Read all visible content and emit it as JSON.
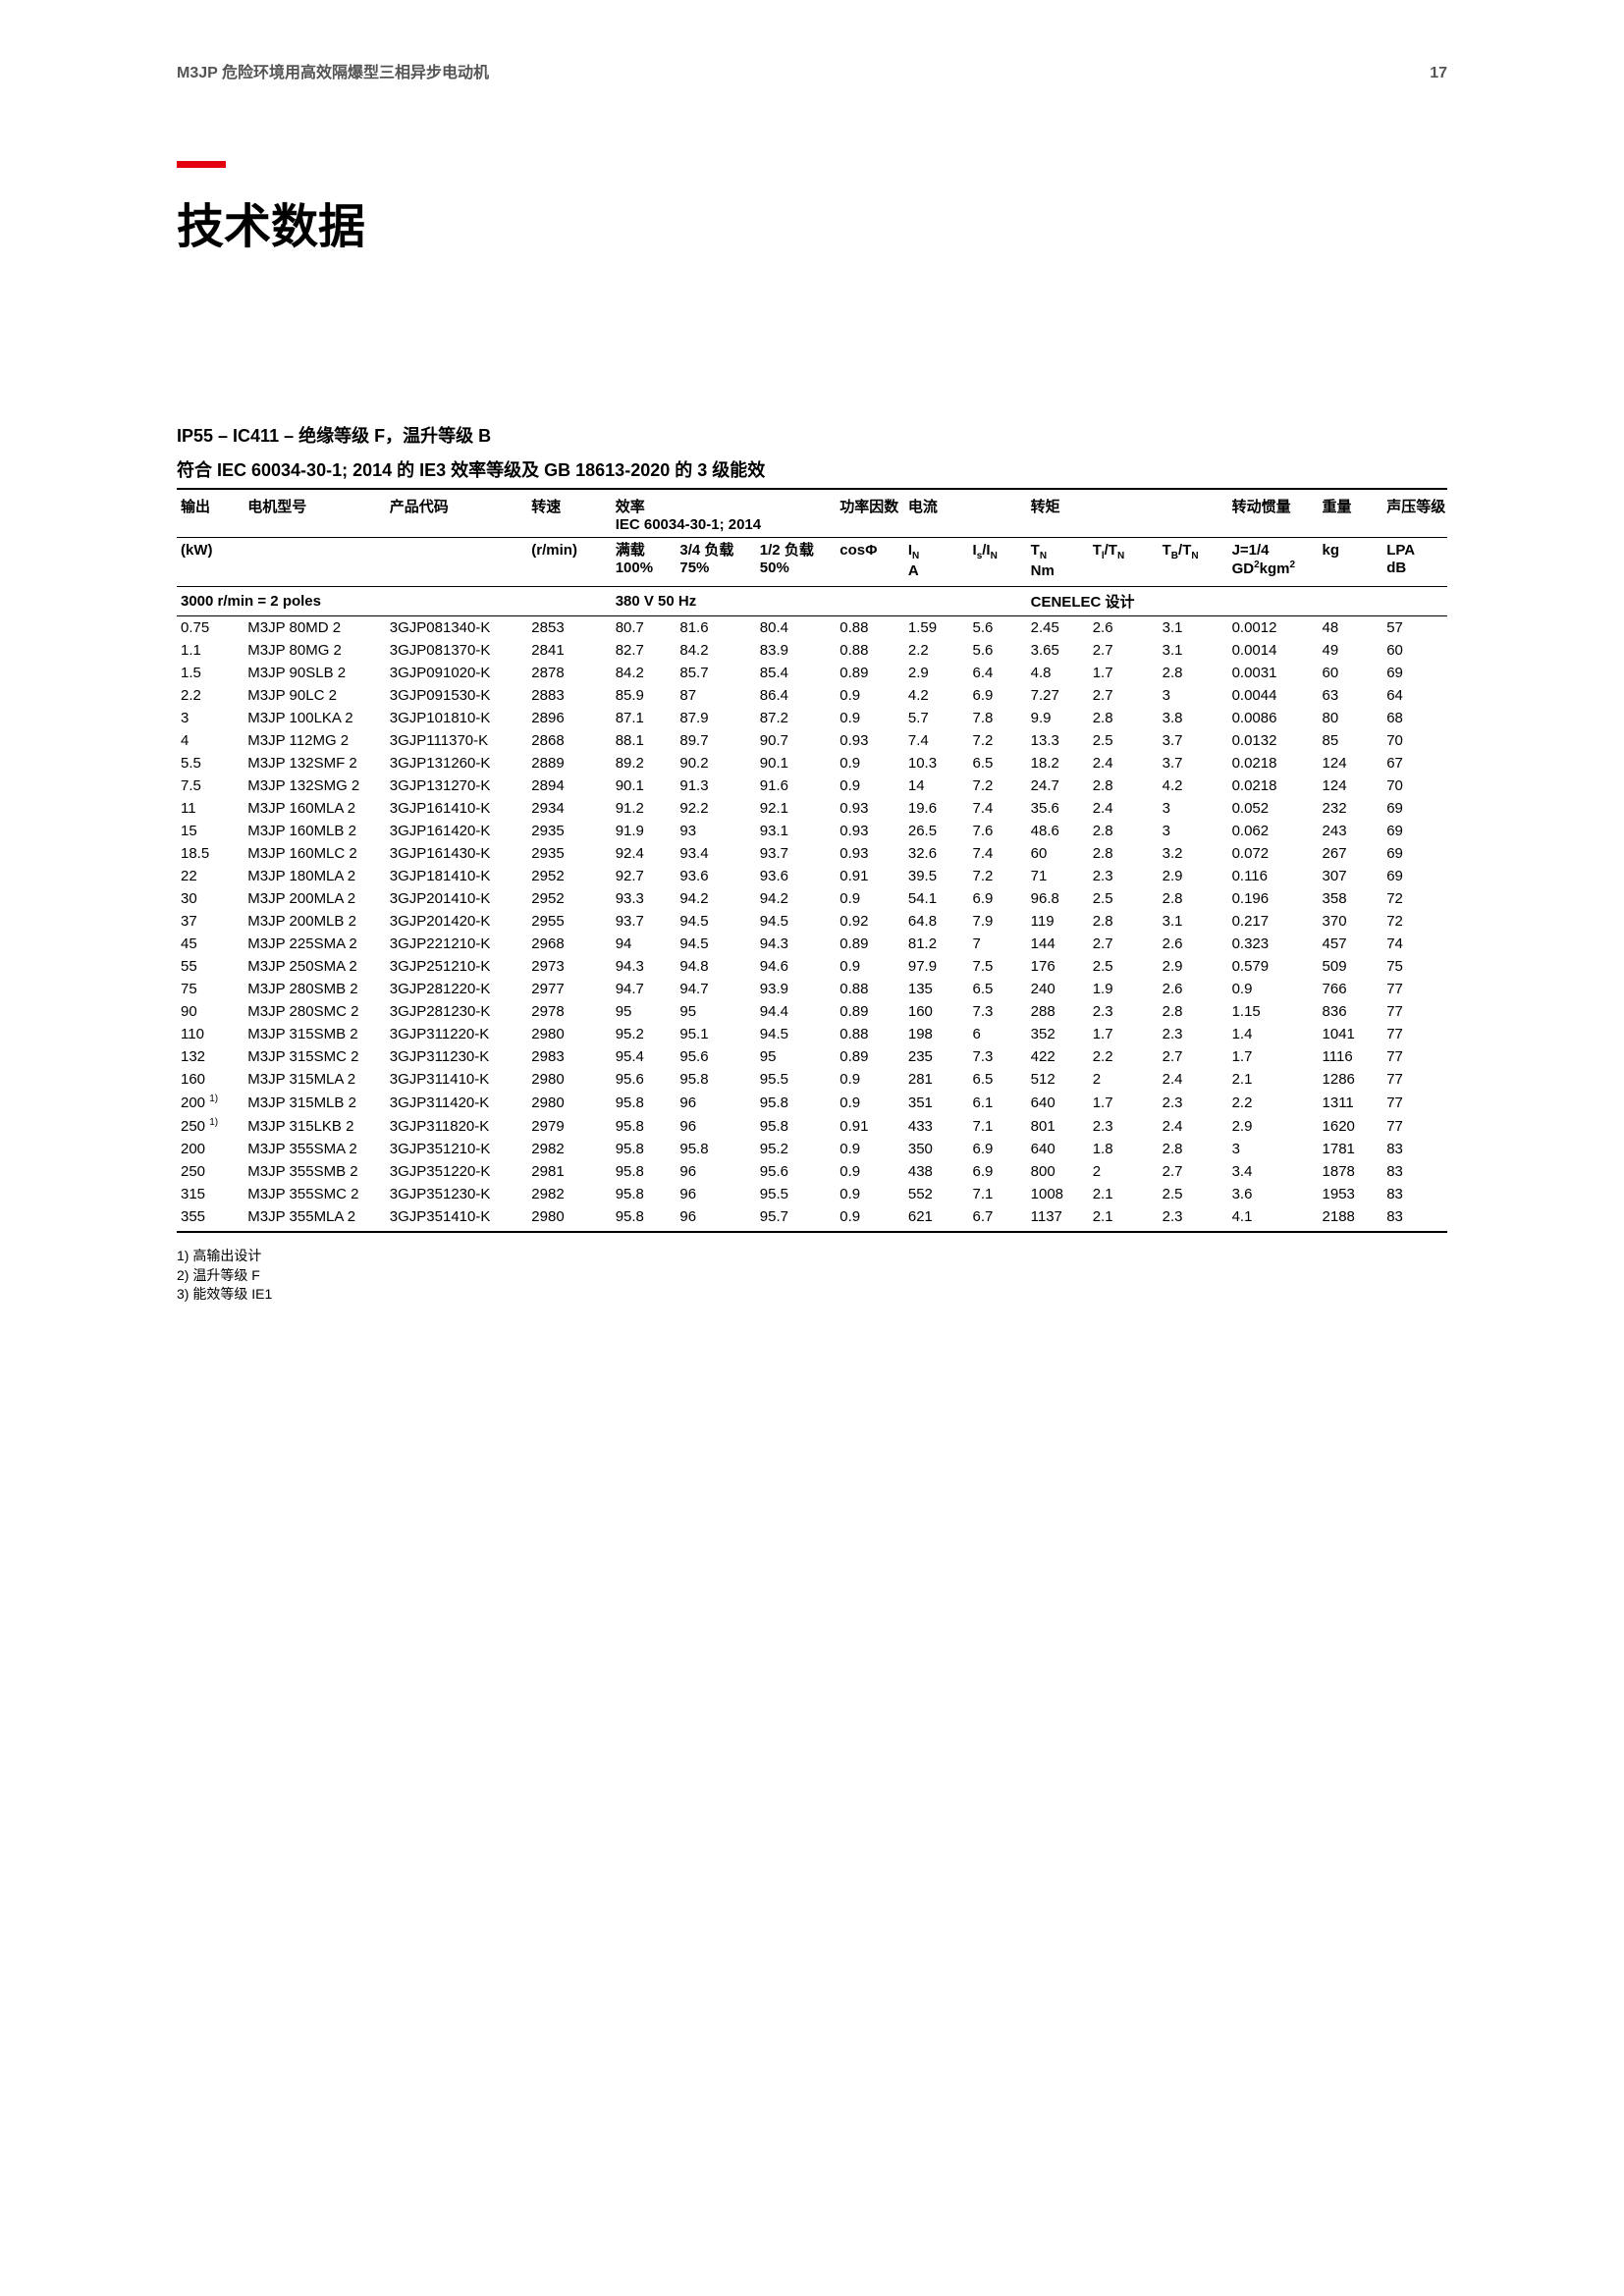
{
  "header": {
    "left": "M3JP 危险环境用高效隔爆型三相异步电动机",
    "page": "17"
  },
  "title": "技术数据",
  "subtitle1": "IP55 – IC411 – 绝缘等级 F，温升等级 B",
  "subtitle2": "符合 IEC 60034-30-1; 2014 的 IE3 效率等级及 GB 18613-2020 的 3 级能效",
  "thead": {
    "r1": {
      "output": "输出",
      "motor": "电机型号",
      "code": "产品代码",
      "speed": "转速",
      "eff_top": "效率",
      "eff_sub": "IEC 60034-30-1; 2014",
      "pf": "功率因数",
      "current": "电流",
      "torque": "转矩",
      "inertia": "转动惯量",
      "weight": "重量",
      "sound": "声压等级"
    },
    "r2": {
      "kw": "(kW)",
      "rmin": "(r/min)",
      "e1a": "满载",
      "e1b": "100%",
      "e2a": "3/4 负载",
      "e2b": "75%",
      "e3a": "1/2 负载",
      "e3b": "50%",
      "cos": "cosΦ",
      "ina_top": "I",
      "ina_sub": "N",
      "ina_bot": "A",
      "isr_a": "I",
      "isr_as": "s",
      "isr_b": "/I",
      "isr_bs": "N",
      "tn_a": "T",
      "tn_as": "N",
      "tn_b": "Nm",
      "ti_a": "T",
      "ti_as": "l",
      "ti_b": "/T",
      "ti_bs": "N",
      "tb_a": "T",
      "tb_as": "B",
      "tb_b": "/T",
      "tb_bs": "N",
      "j_a": "J=1/4",
      "j_b": "GD",
      "j_bs": "2",
      "j_c": "kgm",
      "j_cs": "2",
      "kg": "kg",
      "lpa_a": "LPA",
      "lpa_b": "dB"
    }
  },
  "section": {
    "left": "3000 r/min = 2 poles",
    "mid": "380 V 50 Hz",
    "right": "CENELEC 设计"
  },
  "rows": [
    [
      "0.75",
      "M3JP 80MD 2",
      "3GJP081340-K",
      "2853",
      "80.7",
      "81.6",
      "80.4",
      "0.88",
      "1.59",
      "5.6",
      "2.45",
      "2.6",
      "3.1",
      "0.0012",
      "48",
      "57"
    ],
    [
      "1.1",
      "M3JP 80MG 2",
      "3GJP081370-K",
      "2841",
      "82.7",
      "84.2",
      "83.9",
      "0.88",
      "2.2",
      "5.6",
      "3.65",
      "2.7",
      "3.1",
      "0.0014",
      "49",
      "60"
    ],
    [
      "1.5",
      "M3JP 90SLB 2",
      "3GJP091020-K",
      "2878",
      "84.2",
      "85.7",
      "85.4",
      "0.89",
      "2.9",
      "6.4",
      "4.8",
      "1.7",
      "2.8",
      "0.0031",
      "60",
      "69"
    ],
    [
      "2.2",
      "M3JP 90LC 2",
      "3GJP091530-K",
      "2883",
      "85.9",
      "87",
      "86.4",
      "0.9",
      "4.2",
      "6.9",
      "7.27",
      "2.7",
      "3",
      "0.0044",
      "63",
      "64"
    ],
    [
      "3",
      "M3JP 100LKA 2",
      "3GJP101810-K",
      "2896",
      "87.1",
      "87.9",
      "87.2",
      "0.9",
      "5.7",
      "7.8",
      "9.9",
      "2.8",
      "3.8",
      "0.0086",
      "80",
      "68"
    ],
    [
      "4",
      "M3JP 112MG 2",
      "3GJP111370-K",
      "2868",
      "88.1",
      "89.7",
      "90.7",
      "0.93",
      "7.4",
      "7.2",
      "13.3",
      "2.5",
      "3.7",
      "0.0132",
      "85",
      "70"
    ],
    [
      "5.5",
      "M3JP 132SMF 2",
      "3GJP131260-K",
      "2889",
      "89.2",
      "90.2",
      "90.1",
      "0.9",
      "10.3",
      "6.5",
      "18.2",
      "2.4",
      "3.7",
      "0.0218",
      "124",
      "67"
    ],
    [
      "7.5",
      "M3JP 132SMG 2",
      "3GJP131270-K",
      "2894",
      "90.1",
      "91.3",
      "91.6",
      "0.9",
      "14",
      "7.2",
      "24.7",
      "2.8",
      "4.2",
      "0.0218",
      "124",
      "70"
    ],
    [
      "11",
      "M3JP 160MLA 2",
      "3GJP161410-K",
      "2934",
      "91.2",
      "92.2",
      "92.1",
      "0.93",
      "19.6",
      "7.4",
      "35.6",
      "2.4",
      "3",
      "0.052",
      "232",
      "69"
    ],
    [
      "15",
      "M3JP 160MLB 2",
      "3GJP161420-K",
      "2935",
      "91.9",
      "93",
      "93.1",
      "0.93",
      "26.5",
      "7.6",
      "48.6",
      "2.8",
      "3",
      "0.062",
      "243",
      "69"
    ],
    [
      "18.5",
      "M3JP 160MLC 2",
      "3GJP161430-K",
      "2935",
      "92.4",
      "93.4",
      "93.7",
      "0.93",
      "32.6",
      "7.4",
      "60",
      "2.8",
      "3.2",
      "0.072",
      "267",
      "69"
    ],
    [
      "22",
      "M3JP 180MLA 2",
      "3GJP181410-K",
      "2952",
      "92.7",
      "93.6",
      "93.6",
      "0.91",
      "39.5",
      "7.2",
      "71",
      "2.3",
      "2.9",
      "0.116",
      "307",
      "69"
    ],
    [
      "30",
      "M3JP 200MLA 2",
      "3GJP201410-K",
      "2952",
      "93.3",
      "94.2",
      "94.2",
      "0.9",
      "54.1",
      "6.9",
      "96.8",
      "2.5",
      "2.8",
      "0.196",
      "358",
      "72"
    ],
    [
      "37",
      "M3JP 200MLB 2",
      "3GJP201420-K",
      "2955",
      "93.7",
      "94.5",
      "94.5",
      "0.92",
      "64.8",
      "7.9",
      "119",
      "2.8",
      "3.1",
      "0.217",
      "370",
      "72"
    ],
    [
      "45",
      "M3JP 225SMA 2",
      "3GJP221210-K",
      "2968",
      "94",
      "94.5",
      "94.3",
      "0.89",
      "81.2",
      "7",
      "144",
      "2.7",
      "2.6",
      "0.323",
      "457",
      "74"
    ],
    [
      "55",
      "M3JP 250SMA 2",
      "3GJP251210-K",
      "2973",
      "94.3",
      "94.8",
      "94.6",
      "0.9",
      "97.9",
      "7.5",
      "176",
      "2.5",
      "2.9",
      "0.579",
      "509",
      "75"
    ],
    [
      "75",
      "M3JP 280SMB 2",
      "3GJP281220-K",
      "2977",
      "94.7",
      "94.7",
      "93.9",
      "0.88",
      "135",
      "6.5",
      "240",
      "1.9",
      "2.6",
      "0.9",
      "766",
      "77"
    ],
    [
      "90",
      "M3JP 280SMC 2",
      "3GJP281230-K",
      "2978",
      "95",
      "95",
      "94.4",
      "0.89",
      "160",
      "7.3",
      "288",
      "2.3",
      "2.8",
      "1.15",
      "836",
      "77"
    ],
    [
      "110",
      "M3JP 315SMB 2",
      "3GJP311220-K",
      "2980",
      "95.2",
      "95.1",
      "94.5",
      "0.88",
      "198",
      "6",
      "352",
      "1.7",
      "2.3",
      "1.4",
      "1041",
      "77"
    ],
    [
      "132",
      "M3JP 315SMC 2",
      "3GJP311230-K",
      "2983",
      "95.4",
      "95.6",
      "95",
      "0.89",
      "235",
      "7.3",
      "422",
      "2.2",
      "2.7",
      "1.7",
      "1116",
      "77"
    ],
    [
      "160",
      "M3JP 315MLA 2",
      "3GJP311410-K",
      "2980",
      "95.6",
      "95.8",
      "95.5",
      "0.9",
      "281",
      "6.5",
      "512",
      "2",
      "2.4",
      "2.1",
      "1286",
      "77"
    ],
    [
      "200|1)",
      "M3JP 315MLB 2",
      "3GJP311420-K",
      "2980",
      "95.8",
      "96",
      "95.8",
      "0.9",
      "351",
      "6.1",
      "640",
      "1.7",
      "2.3",
      "2.2",
      "1311",
      "77"
    ],
    [
      "250|1)",
      "M3JP 315LKB 2",
      "3GJP311820-K",
      "2979",
      "95.8",
      "96",
      "95.8",
      "0.91",
      "433",
      "7.1",
      "801",
      "2.3",
      "2.4",
      "2.9",
      "1620",
      "77"
    ],
    [
      "200",
      "M3JP 355SMA 2",
      "3GJP351210-K",
      "2982",
      "95.8",
      "95.8",
      "95.2",
      "0.9",
      "350",
      "6.9",
      "640",
      "1.8",
      "2.8",
      "3",
      "1781",
      "83"
    ],
    [
      "250",
      "M3JP 355SMB 2",
      "3GJP351220-K",
      "2981",
      "95.8",
      "96",
      "95.6",
      "0.9",
      "438",
      "6.9",
      "800",
      "2",
      "2.7",
      "3.4",
      "1878",
      "83"
    ],
    [
      "315",
      "M3JP 355SMC 2",
      "3GJP351230-K",
      "2982",
      "95.8",
      "96",
      "95.5",
      "0.9",
      "552",
      "7.1",
      "1008",
      "2.1",
      "2.5",
      "3.6",
      "1953",
      "83"
    ],
    [
      "355",
      "M3JP 355MLA 2",
      "3GJP351410-K",
      "2980",
      "95.8",
      "96",
      "95.7",
      "0.9",
      "621",
      "6.7",
      "1137",
      "2.1",
      "2.3",
      "4.1",
      "2188",
      "83"
    ]
  ],
  "footnotes": [
    "1) 高输出设计",
    "2) 温升等级 F",
    "3) 能效等级 IE1"
  ]
}
